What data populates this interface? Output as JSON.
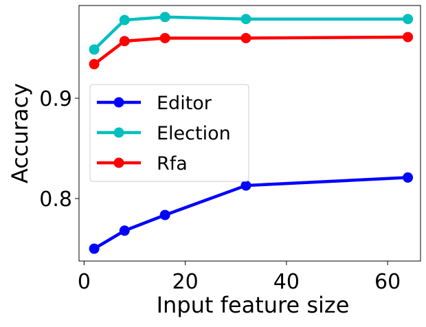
{
  "chart_data": {
    "type": "line",
    "x": [
      2,
      8,
      16,
      32,
      64
    ],
    "series": [
      {
        "name": "Editor",
        "color": "#0000ff",
        "values": [
          0.75,
          0.768,
          0.7836,
          0.813,
          0.821
        ]
      },
      {
        "name": "Election",
        "color": "#00bfbf",
        "values": [
          0.9486,
          0.978,
          0.981,
          0.979,
          0.979
        ]
      },
      {
        "name": "Rfa",
        "color": "#ff0000",
        "values": [
          0.934,
          0.957,
          0.96,
          0.96,
          0.961
        ]
      }
    ],
    "xlabel": "Input feature size",
    "ylabel": "Accuracy",
    "xlim": [
      -1,
      66.5
    ],
    "ylim": [
      0.7377,
      0.9925
    ],
    "xticks": [
      0,
      20,
      40,
      60
    ],
    "yticks": [
      0.8,
      0.9
    ],
    "legend": "center-left"
  }
}
